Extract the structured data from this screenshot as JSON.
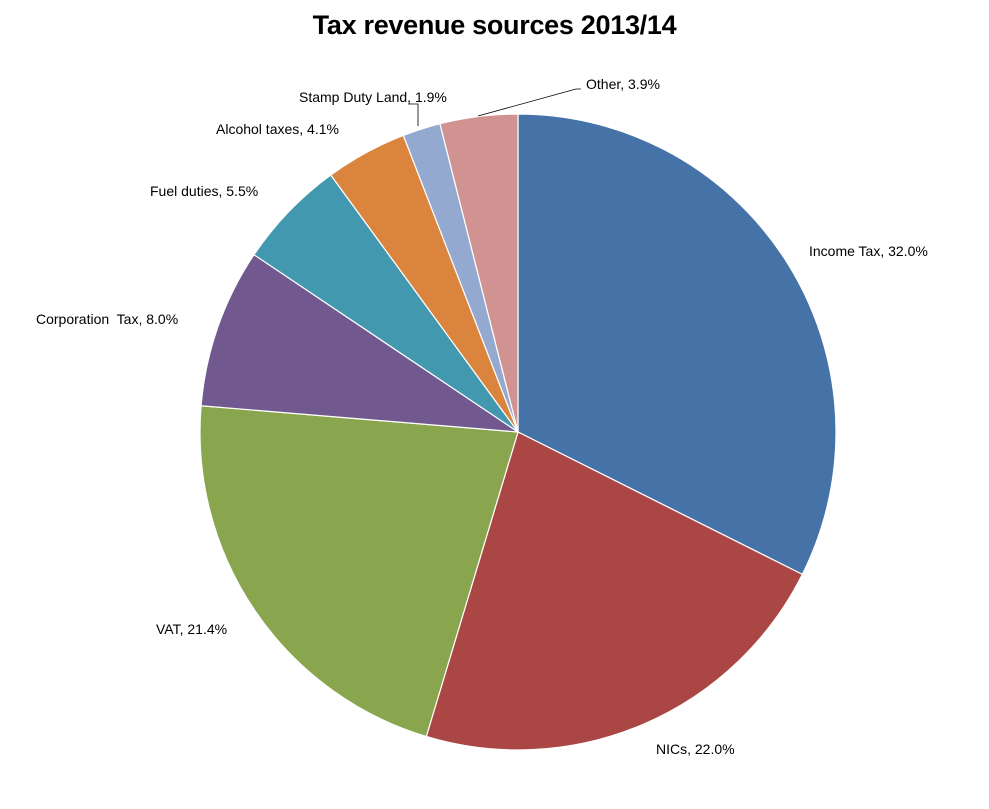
{
  "chart_data": {
    "type": "pie",
    "title": "Tax revenue sources 2013/14",
    "legend": "none",
    "slices": [
      {
        "label": "Income Tax",
        "value": 32.0,
        "display": "Income Tax, 32.0%",
        "color": "#4572A7"
      },
      {
        "label": "NICs",
        "value": 22.0,
        "display": "NICs, 22.0%",
        "color": "#AA4643"
      },
      {
        "label": "VAT",
        "value": 21.4,
        "display": "VAT, 21.4%",
        "color": "#89A54E"
      },
      {
        "label": "Corporation  Tax",
        "value": 8.0,
        "display": "Corporation  Tax, 8.0%",
        "color": "#71588F"
      },
      {
        "label": "Fuel duties",
        "value": 5.5,
        "display": "Fuel duties, 5.5%",
        "color": "#4198AF"
      },
      {
        "label": "Alcohol taxes",
        "value": 4.1,
        "display": "Alcohol taxes, 4.1%",
        "color": "#DB843D"
      },
      {
        "label": "Stamp Duty Land",
        "value": 1.9,
        "display": "Stamp Duty Land, 1.9%",
        "color": "#93A9CF"
      },
      {
        "label": "Other",
        "value": 3.9,
        "display": "Other, 3.9%",
        "color": "#D19392"
      }
    ]
  }
}
